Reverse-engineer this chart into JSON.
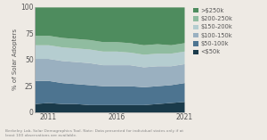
{
  "years": [
    2010,
    2011,
    2012,
    2013,
    2014,
    2015,
    2016,
    2017,
    2018,
    2019,
    2020,
    2021
  ],
  "categories": [
    "<$50k",
    "$50-100k",
    "$100-150k",
    "$150-200k",
    "$200-250k",
    ">$250k"
  ],
  "colors": [
    "#1a3a4a",
    "#4d7490",
    "#9ab0c0",
    "#b5cdd0",
    "#90bca0",
    "#4e8c5e"
  ],
  "data": {
    "<$50k": [
      8,
      9,
      8,
      8,
      7,
      7,
      7,
      7,
      7,
      8,
      9,
      10
    ],
    "$50-100k": [
      22,
      21,
      20,
      19,
      19,
      18,
      18,
      18,
      17,
      17,
      17,
      18
    ],
    "$100-150k": [
      21,
      21,
      21,
      21,
      21,
      20,
      20,
      20,
      19,
      19,
      18,
      18
    ],
    "$150-200k": [
      13,
      13,
      13,
      13,
      13,
      13,
      13,
      12,
      12,
      12,
      12,
      12
    ],
    "$200-250k": [
      9,
      9,
      9,
      9,
      9,
      9,
      9,
      9,
      9,
      9,
      8,
      8
    ],
    ">$250k": [
      27,
      27,
      29,
      30,
      31,
      33,
      33,
      34,
      36,
      35,
      36,
      34
    ]
  },
  "ylabel": "% of Solar Adopters",
  "xlim": [
    2010,
    2021
  ],
  "ylim": [
    0,
    100
  ],
  "xticks": [
    2011,
    2016,
    2021
  ],
  "yticks": [
    0,
    25,
    50,
    75,
    100
  ],
  "footnote": "Berkeley Lab, Solar Demographics Tool. Note: Data presented for individual states only if at\nleast 100 observations are available.",
  "legend_labels": [
    ">$250k",
    "$200-250k",
    "$150-200k",
    "$100-150k",
    "$50-100k",
    "<$50k"
  ],
  "bg_color": "#eeeae4",
  "plot_bg": "#eeeae4"
}
